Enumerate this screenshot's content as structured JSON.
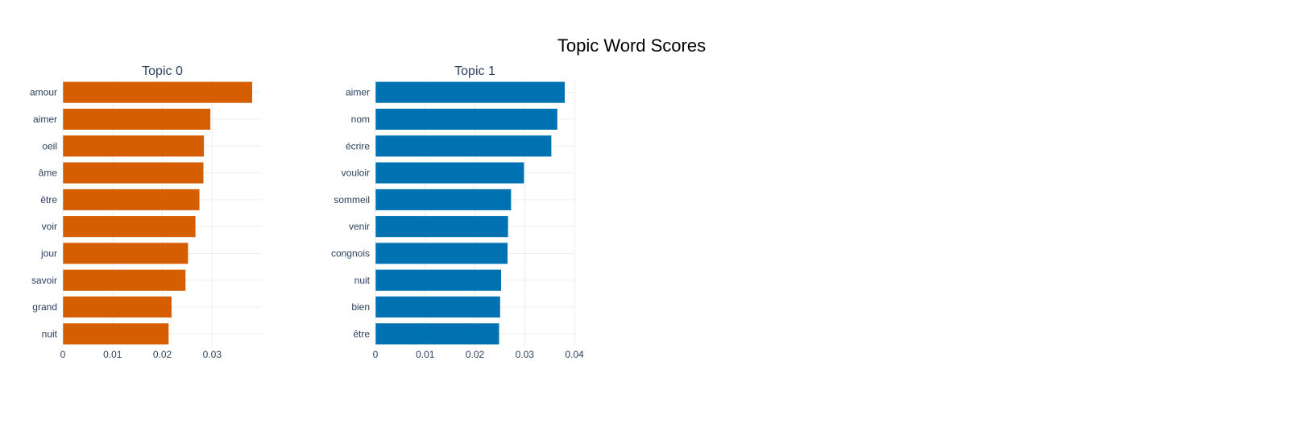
{
  "chart_data": [
    {
      "type": "bar",
      "orientation": "horizontal",
      "title": "Topic 0",
      "color": "#d55e00",
      "categories": [
        "amour",
        "aimer",
        "oeil",
        "âme",
        "être",
        "voir",
        "jour",
        "savoir",
        "grand",
        "nuit"
      ],
      "values": [
        0.0381,
        0.0297,
        0.0284,
        0.0283,
        0.0275,
        0.0267,
        0.0252,
        0.0247,
        0.0219,
        0.0213
      ],
      "xlim": [
        0,
        0.04
      ],
      "xticks": [
        0,
        0.01,
        0.02,
        0.03
      ],
      "xtick_labels": [
        "0",
        "0.01",
        "0.02",
        "0.03"
      ],
      "grid": true
    },
    {
      "type": "bar",
      "orientation": "horizontal",
      "title": "Topic 1",
      "color": "#0072b2",
      "categories": [
        "aimer",
        "nom",
        "écrire",
        "vouloir",
        "sommeil",
        "venir",
        "congnois",
        "nuit",
        "bien",
        "être"
      ],
      "values": [
        0.0381,
        0.0366,
        0.0354,
        0.0299,
        0.0273,
        0.0267,
        0.0266,
        0.0253,
        0.0251,
        0.0249
      ],
      "xlim": [
        0,
        0.04
      ],
      "xticks": [
        0,
        0.01,
        0.02,
        0.03,
        0.04
      ],
      "xtick_labels": [
        "0",
        "0.01",
        "0.02",
        "0.03",
        "0.04"
      ],
      "grid": true
    }
  ],
  "figure": {
    "title": "Topic Word Scores"
  }
}
